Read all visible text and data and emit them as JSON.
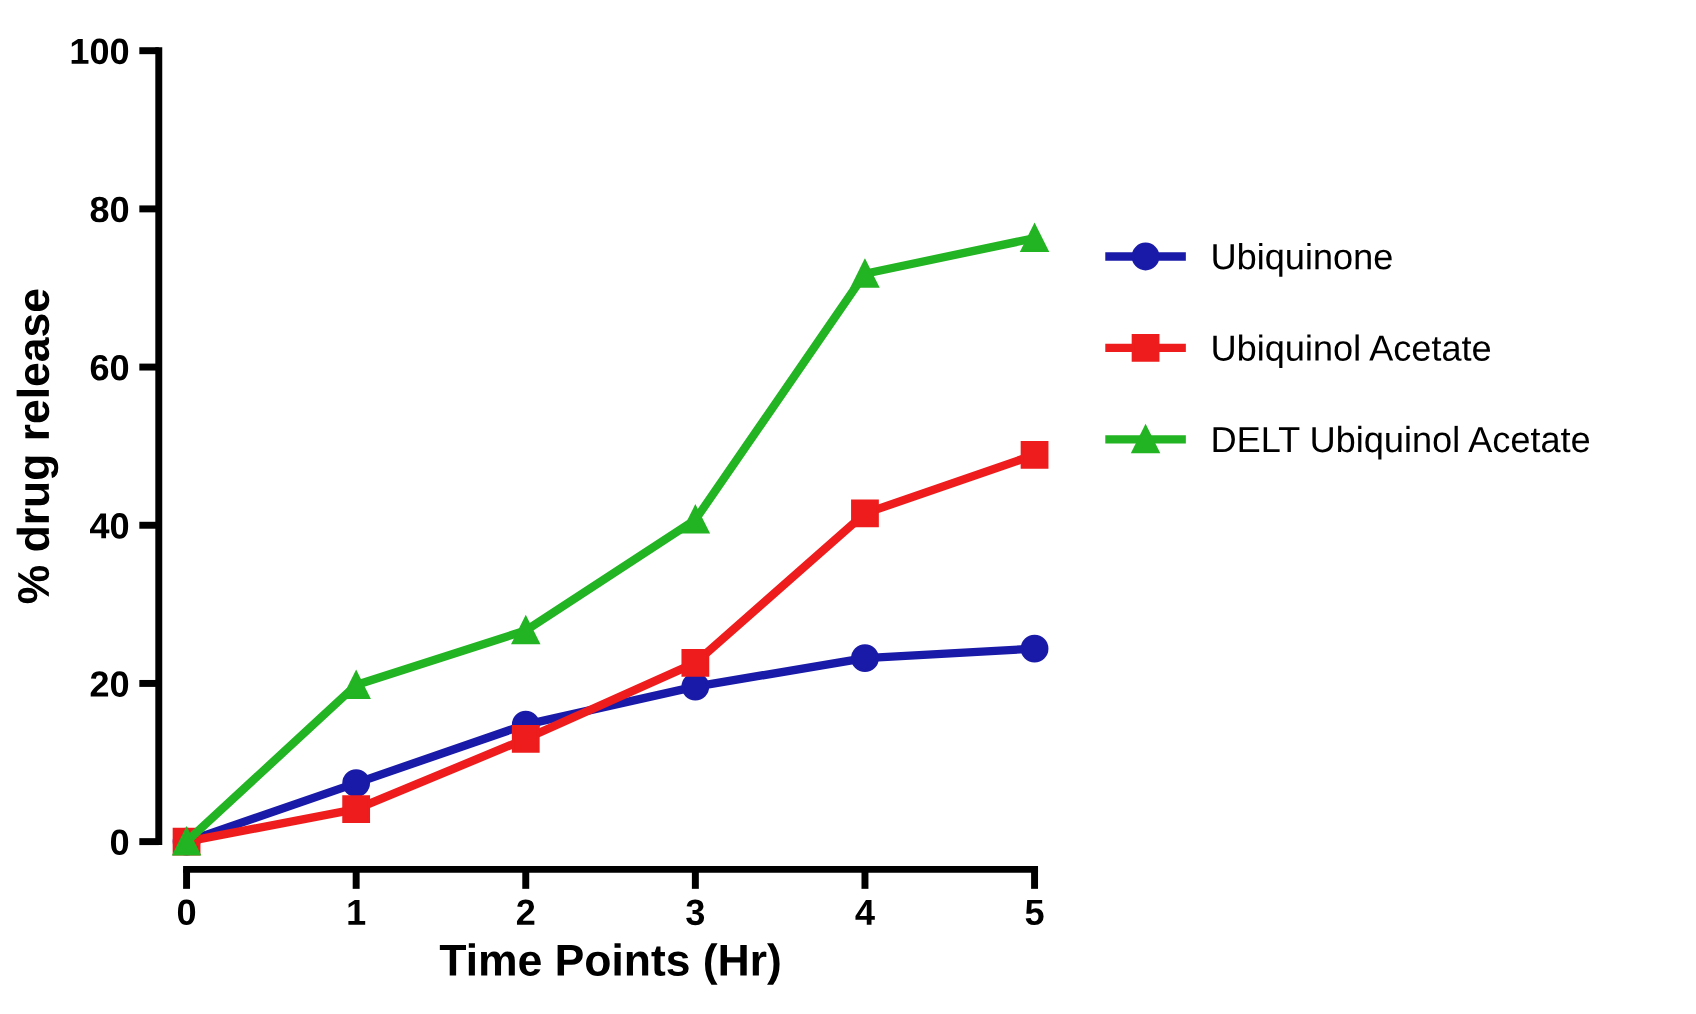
{
  "chart_data": {
    "type": "line",
    "xlabel": "Time Points (Hr)",
    "ylabel": "% drug release",
    "x": [
      0,
      1,
      2,
      3,
      4,
      5
    ],
    "xlim": [
      0,
      5
    ],
    "xticks": [
      0,
      1,
      2,
      3,
      4,
      5
    ],
    "ylim": [
      0,
      100
    ],
    "yticks": [
      0,
      20,
      40,
      60,
      80,
      100
    ],
    "grid": false,
    "legend": "right",
    "line_style": "solid",
    "series": [
      {
        "name": "Ubiquinone",
        "color": "#1a1aa8",
        "marker": "circle",
        "values": [
          0,
          7.4,
          14.8,
          19.6,
          23.2,
          24.4
        ]
      },
      {
        "name": "Ubiquinol Acetate",
        "color": "#ee1c1c",
        "marker": "square",
        "values": [
          0,
          4.1,
          13,
          22.6,
          41.5,
          48.9
        ]
      },
      {
        "name": "DELT Ubiquinol Acetate",
        "color": "#22b422",
        "marker": "triangle",
        "values": [
          0,
          19.8,
          26.7,
          40.7,
          71.8,
          76.3
        ]
      }
    ]
  }
}
